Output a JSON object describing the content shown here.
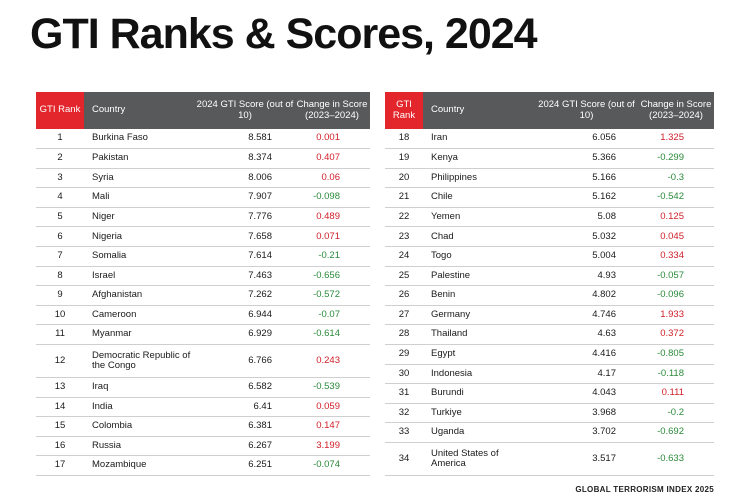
{
  "title": "GTI Ranks & Scores, 2024",
  "headers": {
    "rank": "GTI Rank",
    "country": "Country",
    "score": "2024 GTI Score (out of 10)",
    "change": "Change in Score (2023–2024)"
  },
  "colors": {
    "rank_header": "#e3262c",
    "header": "#58595b",
    "positive_change": "#d0202a",
    "negative_change": "#2a8a3a"
  },
  "left_rows": [
    {
      "rank": "1",
      "country": "Burkina Faso",
      "score": "8.581",
      "change": "0.001"
    },
    {
      "rank": "2",
      "country": "Pakistan",
      "score": "8.374",
      "change": "0.407"
    },
    {
      "rank": "3",
      "country": "Syria",
      "score": "8.006",
      "change": "0.06"
    },
    {
      "rank": "4",
      "country": "Mali",
      "score": "7.907",
      "change": "-0.098"
    },
    {
      "rank": "5",
      "country": "Niger",
      "score": "7.776",
      "change": "0.489"
    },
    {
      "rank": "6",
      "country": "Nigeria",
      "score": "7.658",
      "change": "0.071"
    },
    {
      "rank": "7",
      "country": "Somalia",
      "score": "7.614",
      "change": "-0.21"
    },
    {
      "rank": "8",
      "country": "Israel",
      "score": "7.463",
      "change": "-0.656"
    },
    {
      "rank": "9",
      "country": "Afghanistan",
      "score": "7.262",
      "change": "-0.572"
    },
    {
      "rank": "10",
      "country": "Cameroon",
      "score": "6.944",
      "change": "-0.07"
    },
    {
      "rank": "11",
      "country": "Myanmar",
      "score": "6.929",
      "change": "-0.614"
    },
    {
      "rank": "12",
      "country": "Democratic Republic of the Congo",
      "score": "6.766",
      "change": "0.243"
    },
    {
      "rank": "13",
      "country": "Iraq",
      "score": "6.582",
      "change": "-0.539"
    },
    {
      "rank": "14",
      "country": "India",
      "score": "6.41",
      "change": "0.059"
    },
    {
      "rank": "15",
      "country": "Colombia",
      "score": "6.381",
      "change": "0.147"
    },
    {
      "rank": "16",
      "country": "Russia",
      "score": "6.267",
      "change": "3.199"
    },
    {
      "rank": "17",
      "country": "Mozambique",
      "score": "6.251",
      "change": "-0.074"
    }
  ],
  "right_rows": [
    {
      "rank": "18",
      "country": "Iran",
      "score": "6.056",
      "change": "1.325"
    },
    {
      "rank": "19",
      "country": "Kenya",
      "score": "5.366",
      "change": "-0.299"
    },
    {
      "rank": "20",
      "country": "Philippines",
      "score": "5.166",
      "change": "-0.3"
    },
    {
      "rank": "21",
      "country": "Chile",
      "score": "5.162",
      "change": "-0.542"
    },
    {
      "rank": "22",
      "country": "Yemen",
      "score": "5.08",
      "change": "0.125"
    },
    {
      "rank": "23",
      "country": "Chad",
      "score": "5.032",
      "change": "0.045"
    },
    {
      "rank": "24",
      "country": "Togo",
      "score": "5.004",
      "change": "0.334"
    },
    {
      "rank": "25",
      "country": "Palestine",
      "score": "4.93",
      "change": "-0.057"
    },
    {
      "rank": "26",
      "country": "Benin",
      "score": "4.802",
      "change": "-0.096"
    },
    {
      "rank": "27",
      "country": "Germany",
      "score": "4.746",
      "change": "1.933"
    },
    {
      "rank": "28",
      "country": "Thailand",
      "score": "4.63",
      "change": "0.372"
    },
    {
      "rank": "29",
      "country": "Egypt",
      "score": "4.416",
      "change": "-0.805"
    },
    {
      "rank": "30",
      "country": "Indonesia",
      "score": "4.17",
      "change": "-0.118"
    },
    {
      "rank": "31",
      "country": "Burundi",
      "score": "4.043",
      "change": "0.111"
    },
    {
      "rank": "32",
      "country": "Turkiye",
      "score": "3.968",
      "change": "-0.2"
    },
    {
      "rank": "33",
      "country": "Uganda",
      "score": "3.702",
      "change": "-0.692"
    },
    {
      "rank": "34",
      "country": "United States of America",
      "score": "3.517",
      "change": "-0.633"
    }
  ],
  "footer": "GLOBAL TERRORISM INDEX 2025"
}
